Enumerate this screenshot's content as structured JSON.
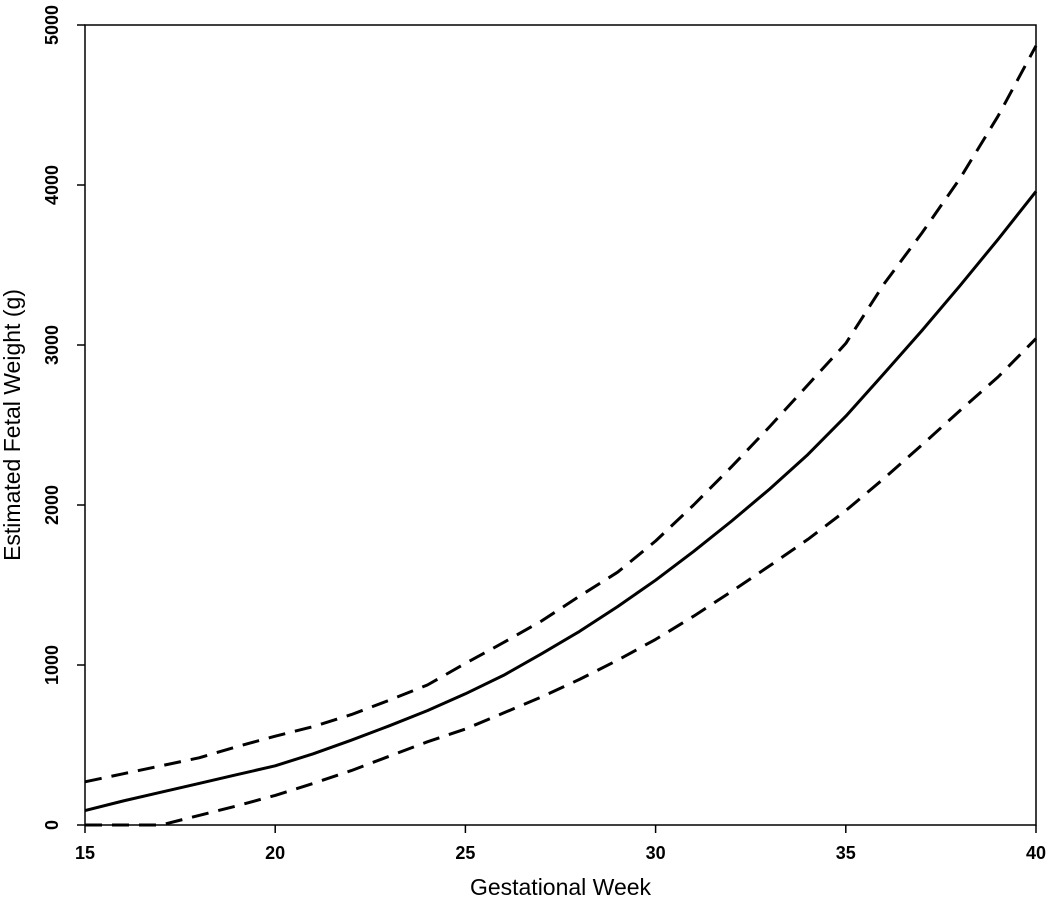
{
  "chart_data": {
    "type": "line",
    "title": "",
    "xlabel": "Gestational Week",
    "ylabel": "Estimated Fetal Weight (g)",
    "xlim": [
      15,
      40
    ],
    "ylim": [
      0,
      5000
    ],
    "x_ticks": [
      "15",
      "20",
      "25",
      "30",
      "35",
      "40"
    ],
    "y_ticks": [
      "0",
      "1000",
      "2000",
      "3000",
      "4000",
      "5000"
    ],
    "grid": false,
    "legend": "none",
    "x": [
      15,
      16,
      17,
      18,
      19,
      20,
      21,
      22,
      23,
      24,
      25,
      26,
      27,
      28,
      29,
      30,
      31,
      32,
      33,
      34,
      35,
      36,
      37,
      38,
      39,
      40
    ],
    "series": [
      {
        "style": "solid",
        "values": [
          90,
          150,
          205,
          260,
          315,
          370,
          445,
          530,
          620,
          715,
          820,
          935,
          1070,
          1210,
          1365,
          1530,
          1710,
          1900,
          2100,
          2315,
          2555,
          2820,
          3090,
          3370,
          3660,
          3960
        ]
      },
      {
        "style": "dashed",
        "values": [
          270,
          320,
          370,
          420,
          490,
          555,
          615,
          690,
          780,
          875,
          1010,
          1140,
          1275,
          1430,
          1580,
          1775,
          2000,
          2240,
          2490,
          2750,
          3010,
          3380,
          3700,
          4040,
          4430,
          4870
        ]
      },
      {
        "style": "dashed",
        "values": [
          0,
          0,
          0,
          60,
          120,
          185,
          260,
          340,
          430,
          520,
          600,
          700,
          800,
          910,
          1030,
          1160,
          1305,
          1460,
          1620,
          1785,
          1965,
          2165,
          2375,
          2590,
          2800,
          3040
        ]
      }
    ]
  }
}
